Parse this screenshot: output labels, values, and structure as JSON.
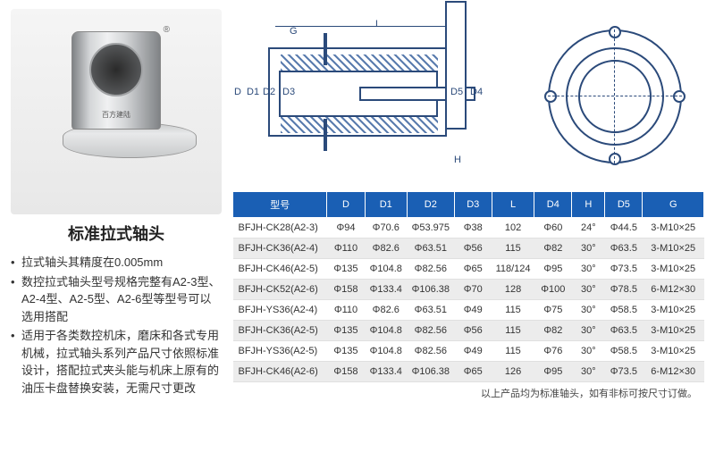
{
  "product": {
    "title": "标准拉式轴头",
    "logo_text": "百方建陆",
    "reg_mark": "®"
  },
  "bullets": [
    "拉式轴头其精度在0.005mm",
    "数控拉式轴头型号规格完整有A2-3型、A2-4型、A2-5型、A2-6型等型号可以选用搭配",
    "适用于各类数控机床，磨床和各式专用机械，拉式轴头系列产品尺寸依照标准设计，搭配拉式夹头能与机床上原有的油压卡盘替换安装，无需尺寸更改"
  ],
  "diagram": {
    "side_labels": {
      "D": "D",
      "D1": "D1",
      "D2": "D2",
      "D3": "D3",
      "D5": "D5",
      "D4": "D4",
      "L": "L",
      "G": "G",
      "H": "H"
    },
    "colors": {
      "line": "#2b4a7a",
      "hatch": "#5a7cae"
    }
  },
  "table": {
    "headers": [
      "型号",
      "D",
      "D1",
      "D2",
      "D3",
      "L",
      "D4",
      "H",
      "D5",
      "G"
    ],
    "rows": [
      [
        "BFJH-CK28(A2-3)",
        "Φ94",
        "Φ70.6",
        "Φ53.975",
        "Φ38",
        "102",
        "Φ60",
        "24°",
        "Φ44.5",
        "3-M10×25"
      ],
      [
        "BFJH-CK36(A2-4)",
        "Φ110",
        "Φ82.6",
        "Φ63.51",
        "Φ56",
        "115",
        "Φ82",
        "30°",
        "Φ63.5",
        "3-M10×25"
      ],
      [
        "BFJH-CK46(A2-5)",
        "Φ135",
        "Φ104.8",
        "Φ82.56",
        "Φ65",
        "118/124",
        "Φ95",
        "30°",
        "Φ73.5",
        "3-M10×25"
      ],
      [
        "BFJH-CK52(A2-6)",
        "Φ158",
        "Φ133.4",
        "Φ106.38",
        "Φ70",
        "128",
        "Φ100",
        "30°",
        "Φ78.5",
        "6-M12×30"
      ],
      [
        "BFJH-YS36(A2-4)",
        "Φ110",
        "Φ82.6",
        "Φ63.51",
        "Φ49",
        "115",
        "Φ75",
        "30°",
        "Φ58.5",
        "3-M10×25"
      ],
      [
        "BFJH-CK36(A2-5)",
        "Φ135",
        "Φ104.8",
        "Φ82.56",
        "Φ56",
        "115",
        "Φ82",
        "30°",
        "Φ63.5",
        "3-M10×25"
      ],
      [
        "BFJH-YS36(A2-5)",
        "Φ135",
        "Φ104.8",
        "Φ82.56",
        "Φ49",
        "115",
        "Φ76",
        "30°",
        "Φ58.5",
        "3-M10×25"
      ],
      [
        "BFJH-CK46(A2-6)",
        "Φ158",
        "Φ133.4",
        "Φ106.38",
        "Φ65",
        "126",
        "Φ95",
        "30°",
        "Φ73.5",
        "6-M12×30"
      ]
    ],
    "note": "以上产品均为标准轴头，如有非标可按尺寸订做。",
    "header_bg": "#1a5fb4",
    "header_fg": "#ffffff",
    "row_even_bg": "#ececec",
    "row_odd_bg": "#ffffff",
    "col_widths_pct": [
      20,
      8,
      9,
      10,
      8,
      9,
      8,
      7,
      8,
      13
    ]
  }
}
